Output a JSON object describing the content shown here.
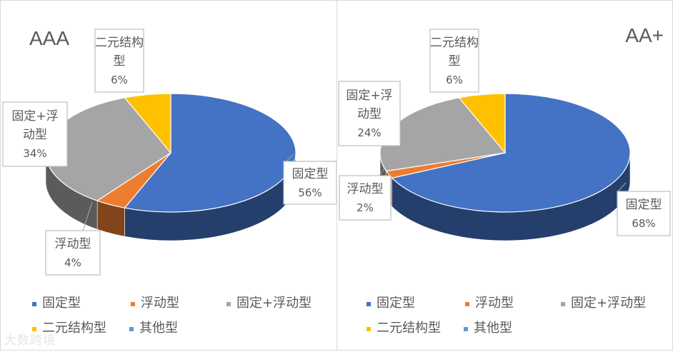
{
  "chart_data": [
    {
      "type": "pie",
      "title": "AAA",
      "categories": [
        "固定型",
        "浮动型",
        "固定+浮动型",
        "二元结构型",
        "其他型"
      ],
      "values": [
        56,
        4,
        34,
        6,
        0
      ],
      "unit": "%",
      "data_labels": [
        {
          "category": "固定型",
          "value": "56%"
        },
        {
          "category": "浮动型",
          "value": "4%"
        },
        {
          "category": "固定+浮动型",
          "value": "34%"
        },
        {
          "category": "二元结构型",
          "value": "6%"
        }
      ],
      "legend": "bottom",
      "three_d": true
    },
    {
      "type": "pie",
      "title": "AA+",
      "categories": [
        "固定型",
        "浮动型",
        "固定+浮动型",
        "二元结构型",
        "其他型"
      ],
      "values": [
        68,
        2,
        24,
        6,
        0
      ],
      "unit": "%",
      "data_labels": [
        {
          "category": "固定型",
          "value": "68%"
        },
        {
          "category": "浮动型",
          "value": "2%"
        },
        {
          "category": "固定+浮动型",
          "value": "24%"
        },
        {
          "category": "二元结构型",
          "value": "6%"
        }
      ],
      "legend": "bottom",
      "three_d": true
    }
  ],
  "colors": {
    "固定型": "#4472C4",
    "浮动型": "#ED7D31",
    "固定+浮动型": "#A5A5A5",
    "二元结构型": "#FFC000",
    "其他型": "#5B9BD5"
  },
  "watermark": "大数跨境"
}
